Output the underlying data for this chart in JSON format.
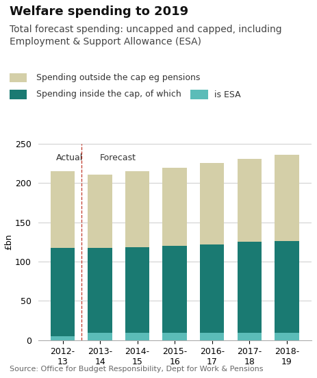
{
  "title": "Welfare spending to 2019",
  "subtitle": "Total forecast spending: uncapped and capped, including\nEmployment & Support Allowance (ESA)",
  "ylabel": "£bn",
  "source": "Source: Office for Budget Responsibility, Dept for Work & Pensions",
  "categories": [
    "2012-\n13",
    "2013-\n14",
    "2014-\n15",
    "2015-\n16",
    "2016-\n17",
    "2017-\n18",
    "2018-\n19"
  ],
  "esa_values": [
    5,
    9,
    9,
    9,
    9,
    9,
    9
  ],
  "inside_cap_values": [
    112,
    108,
    109,
    111,
    113,
    116,
    117
  ],
  "outside_cap_values": [
    98,
    94,
    97,
    99,
    103,
    106,
    110
  ],
  "color_esa": "#5bbcb8",
  "color_inside_cap": "#1a7a72",
  "color_outside_cap": "#d4cfa8",
  "color_dashed_line": "#c0392b",
  "actual_label": "Actual",
  "forecast_label": "Forecast",
  "legend_outside": "Spending outside the cap eg pensions",
  "legend_inside": "Spending inside the cap, of which",
  "legend_esa": "is ESA",
  "ylim": [
    0,
    250
  ],
  "yticks": [
    0,
    50,
    100,
    150,
    200,
    250
  ],
  "background_color": "#ffffff",
  "title_fontsize": 13,
  "subtitle_fontsize": 10,
  "axis_fontsize": 9,
  "tick_fontsize": 9,
  "legend_fontsize": 9,
  "source_fontsize": 8
}
